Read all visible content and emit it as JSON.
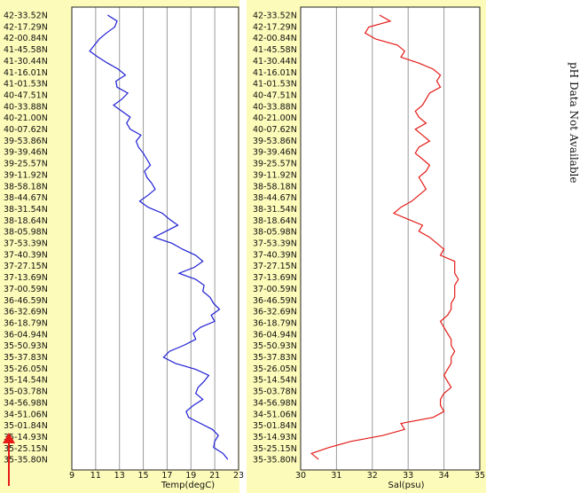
{
  "side_note": "pH Data Not Available",
  "colors": {
    "panel_bg": "#fdfbb9",
    "plot_bg": "#ffffff",
    "temp_line": "#1f1fd6",
    "sal_line": "#e41b17",
    "arrow": "#e41b17",
    "grid": "#9a9a9a"
  },
  "chart_data": [
    {
      "type": "line",
      "xlabel": "Temp(degC)",
      "xlim": [
        9,
        23
      ],
      "xticks": [
        "9",
        "11",
        "13",
        "15",
        "17",
        "19",
        "21",
        "23"
      ],
      "y_ticks": [
        "42-33.52N",
        "42-17.29N",
        "42-00.84N",
        "41-45.58N",
        "41-30.44N",
        "41-16.01N",
        "41-01.53N",
        "40-47.51N",
        "40-33.88N",
        "40-21.00N",
        "40-07.62N",
        "39-53.86N",
        "39-39.46N",
        "39-25.57N",
        "39-11.92N",
        "38-58.18N",
        "38-44.67N",
        "38-31.54N",
        "38-18.64N",
        "38-05.98N",
        "37-53.39N",
        "37-40.39N",
        "37-27.15N",
        "37-13.69N",
        "37-00.59N",
        "36-46.59N",
        "36-32.69N",
        "36-18.79N",
        "36-04.94N",
        "35-50.93N",
        "35-37.83N",
        "35-26.05N",
        "35-14.54N",
        "35-03.78N",
        "34-56.98N",
        "34-51.06N",
        "35-01.84N",
        "35-14.93N",
        "35-25.15N",
        "35-35.80N"
      ],
      "grid": true,
      "series": [
        {
          "x": [
            12.0,
            12.8,
            12.6,
            11.9,
            11.3,
            10.9,
            10.5,
            11.2,
            12.0,
            12.9,
            13.5,
            12.7,
            12.8,
            13.7,
            13.2,
            12.5,
            13.2,
            13.9,
            13.6,
            13.9,
            14.8,
            14.4,
            14.6,
            15.0,
            15.3,
            15.6,
            15.1,
            15.3,
            15.7,
            16.0,
            15.4,
            14.7,
            15.4,
            16.6,
            17.2,
            17.9,
            16.9,
            15.9,
            17.4,
            18.3,
            19.4,
            20.0,
            19.3,
            18.0,
            19.4,
            20.1,
            20.0,
            20.6,
            20.9,
            21.4,
            20.7,
            21.0,
            19.8,
            19.2,
            19.4,
            18.4,
            17.2,
            16.7,
            17.7,
            19.4,
            20.5,
            20.1,
            19.6,
            19.4,
            20.0,
            19.2,
            18.6,
            18.8,
            19.8,
            20.8,
            21.3,
            21.0,
            20.9,
            21.7,
            22.1
          ]
        }
      ]
    },
    {
      "type": "line",
      "xlabel": "Sal(psu)",
      "xlim": [
        30,
        35
      ],
      "xticks": [
        "30",
        "31",
        "32",
        "33",
        "34",
        "35"
      ],
      "y_ticks": [
        "42-33.52N",
        "42-17.29N",
        "42-00.84N",
        "41-45.58N",
        "41-30.44N",
        "41-16.01N",
        "41-01.53N",
        "40-47.51N",
        "40-33.88N",
        "40-21.00N",
        "40-07.62N",
        "39-53.86N",
        "39-39.46N",
        "39-25.57N",
        "39-11.92N",
        "38-58.18N",
        "38-44.67N",
        "38-31.54N",
        "38-18.64N",
        "38-05.98N",
        "37-53.39N",
        "37-40.39N",
        "37-27.15N",
        "37-13.69N",
        "37-00.59N",
        "36-46.59N",
        "36-32.69N",
        "36-18.79N",
        "36-04.94N",
        "35-50.93N",
        "35-37.83N",
        "35-26.05N",
        "35-14.54N",
        "35-03.78N",
        "34-56.98N",
        "34-51.06N",
        "35-01.84N",
        "35-14.93N",
        "35-25.15N",
        "35-35.80N"
      ],
      "grid": true,
      "series": [
        {
          "x": [
            32.2,
            32.5,
            31.9,
            31.8,
            32.1,
            32.7,
            32.9,
            32.8,
            33.3,
            33.7,
            33.9,
            33.8,
            33.9,
            33.6,
            33.5,
            33.4,
            33.2,
            33.3,
            33.5,
            33.2,
            33.4,
            33.6,
            33.3,
            33.2,
            33.4,
            33.6,
            33.5,
            33.3,
            33.4,
            33.5,
            33.3,
            33.1,
            32.8,
            32.6,
            33.0,
            33.4,
            33.3,
            33.6,
            33.8,
            34.0,
            33.9,
            34.3,
            34.3,
            34.3,
            34.4,
            34.3,
            34.3,
            34.3,
            34.2,
            34.2,
            34.1,
            33.9,
            34.0,
            34.1,
            34.2,
            34.2,
            34.3,
            34.2,
            34.2,
            34.1,
            34.0,
            34.1,
            34.2,
            34.0,
            33.9,
            33.9,
            34.0,
            33.7,
            32.8,
            32.9,
            32.3,
            31.4,
            30.8,
            30.3,
            30.5
          ]
        }
      ]
    }
  ]
}
